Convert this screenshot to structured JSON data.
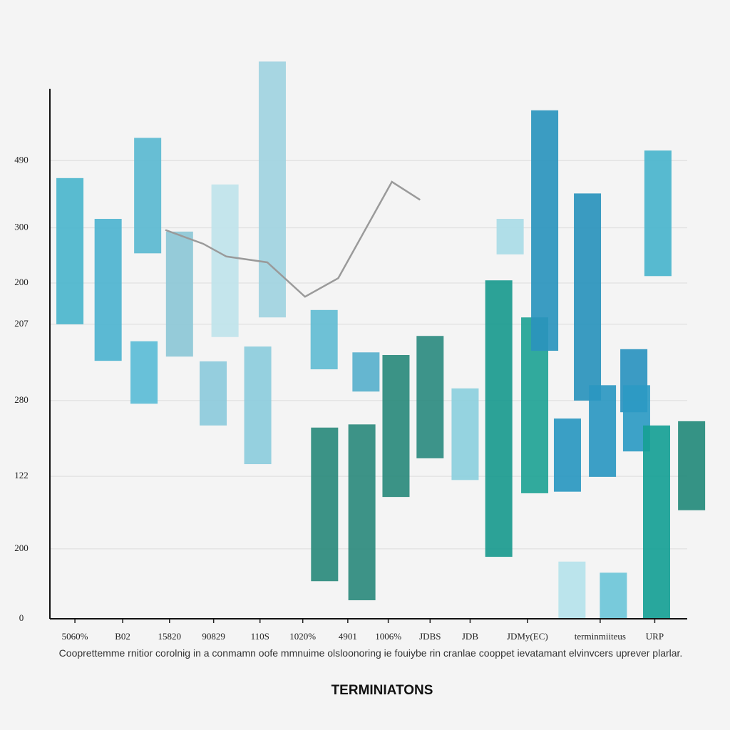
{
  "chart_data": {
    "type": "range-bar",
    "title": "TERMINIATONS",
    "caption": "Cooprettemme rnitior corolnig in a conmamn oofe mmnuime olsloonoring ie fouiybe rin cranlae cooppet ievatamant elvinvcers uprever plarlar.",
    "xlim": [
      0,
      14.5
    ],
    "xticks": [
      {
        "value": 0.55,
        "label": "5060%"
      },
      {
        "value": 1.6,
        "label": "B02"
      },
      {
        "value": 2.63,
        "label": "15820"
      },
      {
        "value": 3.6,
        "label": "90829"
      },
      {
        "value": 4.62,
        "label": "110S"
      },
      {
        "value": 5.56,
        "label": "1020%"
      },
      {
        "value": 6.55,
        "label": "4901"
      },
      {
        "value": 7.44,
        "label": "1006%"
      },
      {
        "value": 8.36,
        "label": "JDBS"
      },
      {
        "value": 9.24,
        "label": "JDB"
      },
      {
        "value": 10.5,
        "label": "JDMy(EC)"
      },
      {
        "value": 12.1,
        "label": "terminmiiteus"
      },
      {
        "value": 13.3,
        "label": "URP"
      }
    ],
    "ylim": [
      0,
      110
    ],
    "yticks": [
      {
        "value": 86.5,
        "label": "490"
      },
      {
        "value": 73.8,
        "label": "300"
      },
      {
        "value": 63.4,
        "label": "200"
      },
      {
        "value": 55.6,
        "label": "207"
      },
      {
        "value": 41.2,
        "label": "280"
      },
      {
        "value": 26.9,
        "label": "122"
      },
      {
        "value": 13.2,
        "label": "200"
      },
      0
    ],
    "grid": true,
    "series": [
      {
        "type": "range-bar",
        "x": [
          0.44,
          1.28,
          2.15,
          2.07,
          2.85,
          3.59,
          3.85,
          4.57,
          4.89,
          6.04,
          6.03,
          6.86,
          6.95,
          7.61,
          8.36,
          9.13,
          9.87,
          10.12,
          10.66,
          10.88,
          11.38,
          11.48,
          11.82,
          12.15,
          12.39,
          12.84,
          12.9,
          13.37,
          13.34,
          14.11
        ],
        "low": [
          55.6,
          48.7,
          69.0,
          40.6,
          49.5,
          36.5,
          53.2,
          29.2,
          56.9,
          7.1,
          47.1,
          3.5,
          42.9,
          23.0,
          30.3,
          26.2,
          11.7,
          68.8,
          23.7,
          50.6,
          24.0,
          0,
          41.2,
          26.8,
          0,
          39.0,
          31.6,
          64.7,
          0,
          20.5
        ],
        "high": [
          83.2,
          75.5,
          90.8,
          52.4,
          73.1,
          48.6,
          82.0,
          51.4,
          105.2,
          36.1,
          58.3,
          36.7,
          50.3,
          49.8,
          53.4,
          43.5,
          63.9,
          75.5,
          56.9,
          96.0,
          37.8,
          10.8,
          80.3,
          44.1,
          8.7,
          50.9,
          44.1,
          88.4,
          36.5,
          37.3
        ],
        "colors": [
          "#4bb5cc",
          "#4db3cf",
          "#5ab8d0",
          "#5bbcd6",
          "#8cc7d6",
          "#8ccadb",
          "#bfe3ea",
          "#8cccdc",
          "#9fd3e0",
          "#2a8a7c",
          "#62bcd3",
          "#2d8a7d",
          "#58b0cc",
          "#2a8a7c",
          "#2d8b80",
          "#8ccfdd",
          "#1a9a8e",
          "#a9dbe6",
          "#1fa395",
          "#2a94bd",
          "#2997c0",
          "#b5e2ea",
          "#2993bc",
          "#2b97c1",
          "#6cc6d8",
          "#2a93bf",
          "#2c9ac3",
          "#49b4cc",
          "#16a095",
          "#248a7b"
        ]
      },
      {
        "type": "line",
        "color": "#9a9a9a",
        "x": [
          2.54,
          3.37,
          3.88,
          4.78,
          5.61,
          6.34,
          7.52,
          8.14
        ],
        "values": [
          73.4,
          70.8,
          68.4,
          67.3,
          60.8,
          64.3,
          82.5,
          79.1
        ]
      }
    ]
  }
}
